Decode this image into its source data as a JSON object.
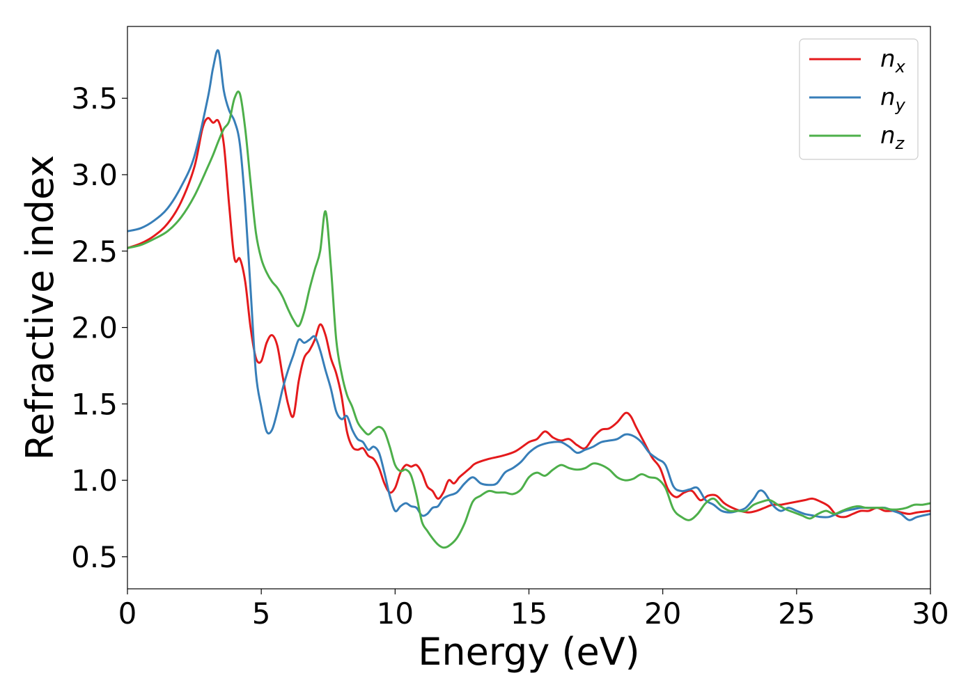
{
  "chart_data": {
    "type": "line",
    "title": "",
    "xlabel": "Energy (eV)",
    "ylabel": "Refractive index",
    "xlim": [
      0,
      30
    ],
    "ylim": [
      0.29,
      3.97
    ],
    "xticks": [
      0,
      5,
      10,
      15,
      20,
      25,
      30
    ],
    "xtick_labels": [
      "0",
      "5",
      "10",
      "15",
      "20",
      "25",
      "30"
    ],
    "yticks": [
      0.5,
      1.0,
      1.5,
      2.0,
      2.5,
      3.0,
      3.5
    ],
    "ytick_labels": [
      "0.5",
      "1.0",
      "1.5",
      "2.0",
      "2.5",
      "3.0",
      "3.5"
    ],
    "grid": false,
    "legend_position": "top-right",
    "series": [
      {
        "name": "n",
        "subscript": "x",
        "color": "#e41a1c",
        "x": [
          0,
          0.5,
          1.0,
          1.5,
          2.0,
          2.5,
          2.8,
          3.0,
          3.2,
          3.4,
          3.6,
          3.8,
          4.0,
          4.2,
          4.4,
          4.6,
          4.8,
          5.0,
          5.2,
          5.4,
          5.6,
          5.8,
          6.0,
          6.2,
          6.4,
          6.6,
          6.8,
          7.0,
          7.2,
          7.4,
          7.6,
          7.8,
          8.0,
          8.2,
          8.4,
          8.6,
          8.8,
          9.0,
          9.2,
          9.4,
          9.6,
          9.8,
          10.0,
          10.2,
          10.4,
          10.6,
          10.8,
          11.0,
          11.2,
          11.4,
          11.6,
          11.8,
          12.0,
          12.2,
          12.4,
          12.6,
          12.8,
          13.0,
          13.5,
          14.0,
          14.5,
          15.0,
          15.3,
          15.6,
          15.9,
          16.2,
          16.5,
          16.8,
          17.1,
          17.4,
          17.7,
          18.0,
          18.3,
          18.6,
          18.8,
          19.0,
          19.3,
          19.6,
          19.9,
          20.2,
          20.5,
          20.8,
          21.1,
          21.4,
          21.7,
          22.0,
          22.3,
          22.6,
          22.9,
          23.2,
          23.5,
          23.8,
          24.1,
          24.4,
          24.7,
          25.0,
          25.3,
          25.6,
          25.9,
          26.2,
          26.5,
          26.8,
          27.1,
          27.4,
          27.7,
          28.0,
          28.3,
          28.6,
          28.9,
          29.2,
          29.5,
          30.0
        ],
        "values": [
          2.52,
          2.55,
          2.6,
          2.68,
          2.82,
          3.05,
          3.3,
          3.37,
          3.34,
          3.35,
          3.2,
          2.8,
          2.45,
          2.45,
          2.3,
          2.0,
          1.8,
          1.78,
          1.9,
          1.95,
          1.88,
          1.68,
          1.5,
          1.42,
          1.65,
          1.8,
          1.85,
          1.92,
          2.02,
          1.95,
          1.8,
          1.7,
          1.55,
          1.32,
          1.22,
          1.2,
          1.21,
          1.16,
          1.14,
          1.08,
          0.98,
          0.92,
          0.95,
          1.05,
          1.1,
          1.09,
          1.1,
          1.05,
          0.96,
          0.93,
          0.88,
          0.92,
          1.0,
          0.98,
          1.02,
          1.05,
          1.08,
          1.11,
          1.14,
          1.16,
          1.19,
          1.25,
          1.27,
          1.32,
          1.28,
          1.26,
          1.27,
          1.23,
          1.21,
          1.28,
          1.33,
          1.34,
          1.38,
          1.44,
          1.42,
          1.35,
          1.25,
          1.15,
          1.08,
          0.94,
          0.89,
          0.92,
          0.93,
          0.87,
          0.9,
          0.9,
          0.85,
          0.82,
          0.8,
          0.79,
          0.8,
          0.82,
          0.84,
          0.84,
          0.85,
          0.86,
          0.87,
          0.88,
          0.86,
          0.83,
          0.77,
          0.76,
          0.78,
          0.8,
          0.8,
          0.82,
          0.8,
          0.8,
          0.79,
          0.78,
          0.79,
          0.8
        ]
      },
      {
        "name": "n",
        "subscript": "y",
        "color": "#377eb8",
        "x": [
          0,
          0.5,
          1.0,
          1.5,
          2.0,
          2.5,
          3.0,
          3.2,
          3.4,
          3.6,
          3.8,
          4.0,
          4.2,
          4.4,
          4.6,
          4.8,
          5.0,
          5.2,
          5.4,
          5.6,
          5.8,
          6.0,
          6.2,
          6.4,
          6.6,
          6.8,
          7.0,
          7.2,
          7.4,
          7.6,
          7.8,
          8.0,
          8.2,
          8.4,
          8.6,
          8.8,
          9.0,
          9.2,
          9.4,
          9.6,
          9.8,
          10.0,
          10.2,
          10.4,
          10.6,
          10.8,
          11.0,
          11.2,
          11.4,
          11.6,
          11.8,
          12.0,
          12.3,
          12.6,
          12.9,
          13.2,
          13.5,
          13.8,
          14.1,
          14.4,
          14.7,
          15.0,
          15.3,
          15.6,
          15.9,
          16.2,
          16.5,
          16.8,
          17.1,
          17.4,
          17.7,
          18.0,
          18.3,
          18.6,
          18.9,
          19.2,
          19.5,
          19.8,
          20.1,
          20.4,
          20.7,
          21.0,
          21.3,
          21.6,
          21.9,
          22.2,
          22.5,
          22.8,
          23.1,
          23.4,
          23.6,
          23.8,
          24.1,
          24.4,
          24.7,
          25.0,
          25.3,
          25.6,
          25.9,
          26.2,
          26.5,
          26.8,
          27.1,
          27.4,
          27.7,
          28.0,
          28.3,
          28.6,
          28.9,
          29.2,
          29.5,
          30.0
        ],
        "values": [
          2.63,
          2.65,
          2.7,
          2.78,
          2.92,
          3.12,
          3.5,
          3.7,
          3.81,
          3.55,
          3.42,
          3.35,
          3.2,
          2.8,
          2.25,
          1.7,
          1.48,
          1.32,
          1.33,
          1.45,
          1.6,
          1.72,
          1.82,
          1.92,
          1.9,
          1.92,
          1.94,
          1.85,
          1.72,
          1.6,
          1.45,
          1.4,
          1.42,
          1.33,
          1.27,
          1.25,
          1.2,
          1.22,
          1.18,
          1.05,
          0.9,
          0.8,
          0.83,
          0.85,
          0.83,
          0.82,
          0.77,
          0.78,
          0.82,
          0.83,
          0.88,
          0.9,
          0.92,
          0.98,
          1.02,
          0.98,
          0.97,
          0.98,
          1.05,
          1.08,
          1.12,
          1.18,
          1.22,
          1.24,
          1.25,
          1.25,
          1.22,
          1.18,
          1.2,
          1.22,
          1.25,
          1.26,
          1.27,
          1.3,
          1.29,
          1.25,
          1.18,
          1.14,
          1.1,
          0.96,
          0.93,
          0.94,
          0.95,
          0.87,
          0.84,
          0.8,
          0.79,
          0.8,
          0.82,
          0.88,
          0.93,
          0.92,
          0.84,
          0.8,
          0.82,
          0.8,
          0.78,
          0.77,
          0.76,
          0.76,
          0.78,
          0.8,
          0.81,
          0.82,
          0.82,
          0.82,
          0.82,
          0.8,
          0.78,
          0.74,
          0.76,
          0.78
        ]
      },
      {
        "name": "n",
        "subscript": "z",
        "color": "#4daf4a",
        "x": [
          0,
          0.5,
          1.0,
          1.5,
          2.0,
          2.5,
          3.0,
          3.2,
          3.4,
          3.6,
          3.8,
          4.0,
          4.2,
          4.4,
          4.6,
          4.8,
          5.0,
          5.2,
          5.4,
          5.6,
          5.8,
          6.0,
          6.2,
          6.4,
          6.6,
          6.8,
          7.0,
          7.2,
          7.4,
          7.6,
          7.8,
          8.0,
          8.2,
          8.4,
          8.6,
          8.8,
          9.0,
          9.2,
          9.4,
          9.6,
          9.8,
          10.0,
          10.2,
          10.4,
          10.6,
          10.8,
          11.0,
          11.2,
          11.4,
          11.6,
          11.8,
          12.0,
          12.3,
          12.6,
          12.9,
          13.2,
          13.5,
          13.8,
          14.1,
          14.4,
          14.7,
          15.0,
          15.3,
          15.6,
          15.9,
          16.2,
          16.5,
          16.8,
          17.1,
          17.4,
          17.7,
          18.0,
          18.3,
          18.6,
          18.9,
          19.2,
          19.5,
          19.8,
          20.1,
          20.4,
          20.7,
          21.0,
          21.3,
          21.6,
          21.9,
          22.2,
          22.5,
          22.8,
          23.1,
          23.4,
          23.7,
          24.0,
          24.3,
          24.6,
          24.9,
          25.2,
          25.5,
          25.8,
          26.1,
          26.4,
          26.7,
          27.0,
          27.3,
          27.6,
          27.9,
          28.2,
          28.5,
          28.8,
          29.1,
          29.4,
          29.7,
          30.0
        ],
        "values": [
          2.52,
          2.54,
          2.58,
          2.63,
          2.72,
          2.86,
          3.05,
          3.13,
          3.22,
          3.3,
          3.35,
          3.5,
          3.53,
          3.3,
          2.95,
          2.62,
          2.45,
          2.36,
          2.3,
          2.26,
          2.2,
          2.12,
          2.05,
          2.01,
          2.1,
          2.25,
          2.38,
          2.5,
          2.76,
          2.4,
          1.92,
          1.7,
          1.56,
          1.48,
          1.38,
          1.33,
          1.3,
          1.33,
          1.35,
          1.32,
          1.22,
          1.1,
          1.06,
          1.07,
          1.03,
          0.9,
          0.73,
          0.67,
          0.62,
          0.58,
          0.56,
          0.57,
          0.62,
          0.72,
          0.86,
          0.9,
          0.93,
          0.92,
          0.92,
          0.91,
          0.94,
          1.02,
          1.05,
          1.03,
          1.07,
          1.1,
          1.08,
          1.07,
          1.08,
          1.11,
          1.1,
          1.07,
          1.02,
          1.0,
          1.01,
          1.04,
          1.02,
          1.01,
          0.95,
          0.81,
          0.76,
          0.74,
          0.78,
          0.85,
          0.88,
          0.83,
          0.8,
          0.8,
          0.8,
          0.84,
          0.86,
          0.87,
          0.84,
          0.81,
          0.79,
          0.77,
          0.75,
          0.78,
          0.8,
          0.78,
          0.8,
          0.82,
          0.83,
          0.82,
          0.82,
          0.82,
          0.81,
          0.81,
          0.82,
          0.84,
          0.84,
          0.85
        ]
      }
    ]
  }
}
